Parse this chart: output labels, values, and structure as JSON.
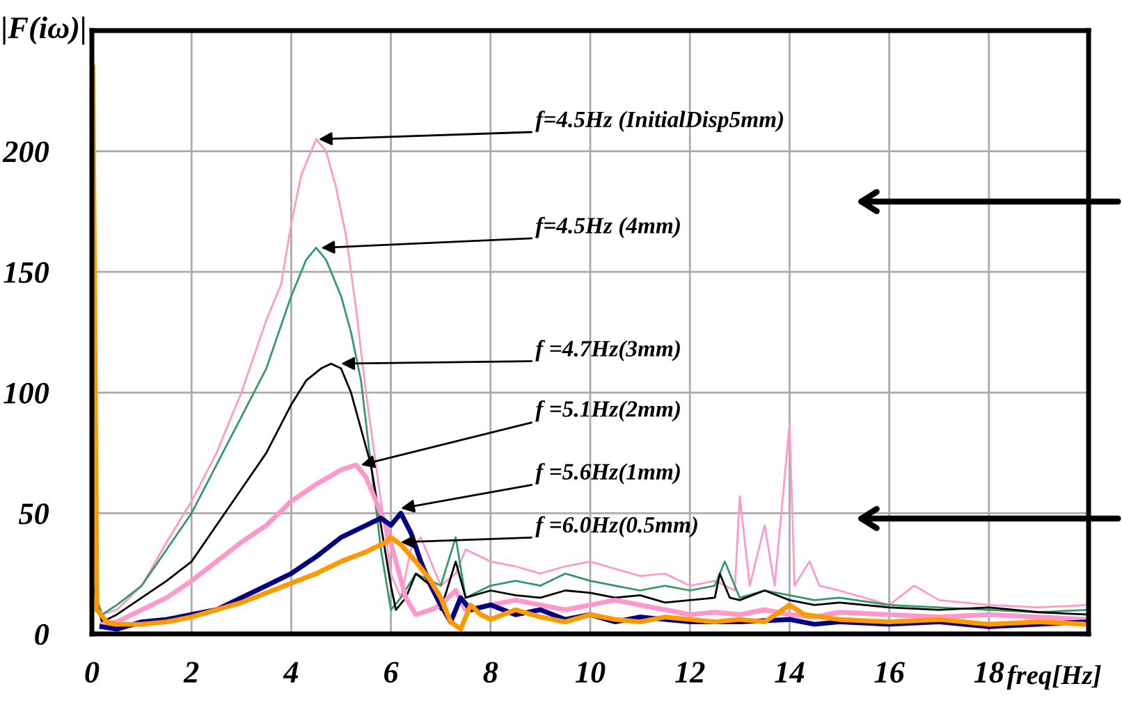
{
  "chart_data": {
    "type": "line",
    "ylabel": "|F(iω)|",
    "xlabel": "freq[Hz]",
    "xlim": [
      0,
      20
    ],
    "xticks": [
      0,
      2,
      4,
      6,
      8,
      10,
      12,
      14,
      16,
      18
    ],
    "ylim": [
      0,
      250
    ],
    "yticks": [
      0,
      50,
      100,
      150,
      200
    ],
    "grid": true,
    "marker": "none",
    "line_style": "solid",
    "series": [
      {
        "color": "#ff99cc",
        "x": [
          0.2,
          0.5,
          1,
          1.5,
          2,
          2.5,
          3,
          3.5,
          3.8,
          4.0,
          4.2,
          4.4,
          4.5,
          4.7,
          4.9,
          5.1,
          5.3,
          5.5,
          5.7,
          5.9,
          6.0,
          6.2,
          6.4,
          6.6,
          6.8,
          7.0,
          7.3,
          7.5,
          8,
          8.5,
          9,
          9.5,
          10,
          10.5,
          11,
          11.5,
          12,
          12.5,
          12.9,
          13.0,
          13.2,
          13.5,
          13.7,
          14.0,
          14.1,
          14.4,
          14.6,
          15,
          15.5,
          16,
          16.5,
          17,
          18,
          19,
          20
        ],
        "values": [
          8,
          10,
          20,
          38,
          55,
          75,
          100,
          130,
          145,
          170,
          190,
          200,
          205,
          200,
          185,
          165,
          135,
          100,
          70,
          40,
          25,
          15,
          35,
          40,
          30,
          20,
          25,
          35,
          30,
          28,
          25,
          28,
          30,
          27,
          24,
          25,
          20,
          22,
          18,
          57,
          20,
          45,
          20,
          87,
          20,
          30,
          20,
          18,
          15,
          12,
          20,
          14,
          12,
          11,
          12
        ]
      },
      {
        "color": "#339966",
        "x": [
          0.02,
          0.2,
          0.5,
          1,
          1.5,
          2,
          2.5,
          3,
          3.5,
          4,
          4.3,
          4.5,
          4.7,
          5,
          5.2,
          5.4,
          5.6,
          5.8,
          6.0,
          6.2,
          6.5,
          7.0,
          7.3,
          7.5,
          8,
          8.5,
          9,
          9.5,
          10,
          10.5,
          11,
          11.5,
          12,
          12.5,
          12.7,
          13,
          13.5,
          14,
          14.5,
          15,
          16,
          17,
          18,
          19,
          20
        ],
        "values": [
          20,
          8,
          12,
          20,
          35,
          50,
          70,
          90,
          110,
          140,
          155,
          160,
          155,
          140,
          125,
          105,
          70,
          35,
          10,
          15,
          25,
          20,
          40,
          15,
          20,
          22,
          20,
          25,
          22,
          20,
          18,
          20,
          18,
          20,
          30,
          15,
          18,
          16,
          14,
          15,
          12,
          11,
          10,
          9,
          10
        ]
      },
      {
        "color": "#000000",
        "x": [
          0.02,
          0.2,
          0.5,
          1,
          1.5,
          2,
          2.5,
          3,
          3.5,
          4,
          4.3,
          4.6,
          4.8,
          5.0,
          5.2,
          5.4,
          5.6,
          5.8,
          6.0,
          6.1,
          6.3,
          6.5,
          6.8,
          7.0,
          7.3,
          7.5,
          8,
          8.5,
          9,
          9.5,
          10,
          10.5,
          11,
          11.5,
          12,
          12.5,
          12.6,
          12.8,
          13,
          13.5,
          14,
          14.5,
          15,
          16,
          17,
          18,
          19,
          20
        ],
        "values": [
          20,
          5,
          8,
          15,
          22,
          30,
          45,
          60,
          75,
          95,
          105,
          110,
          112,
          110,
          100,
          85,
          70,
          45,
          20,
          10,
          15,
          25,
          20,
          10,
          30,
          15,
          18,
          16,
          15,
          18,
          17,
          15,
          16,
          13,
          14,
          15,
          25,
          15,
          14,
          18,
          14,
          12,
          13,
          11,
          10,
          11,
          9,
          8
        ]
      },
      {
        "color": "#ff99cc",
        "x": [
          0.2,
          0.5,
          1,
          1.5,
          2,
          2.5,
          3,
          3.5,
          4,
          4.5,
          5,
          5.3,
          5.5,
          5.7,
          5.9,
          6.1,
          6.3,
          6.5,
          6.8,
          7.0,
          7.3,
          7.5,
          8,
          8.5,
          9,
          9.5,
          10,
          10.5,
          11,
          11.5,
          12,
          12.5,
          13,
          13.5,
          14,
          14.5,
          15,
          16,
          17,
          18,
          19,
          20
        ],
        "values": [
          4,
          5,
          10,
          15,
          22,
          30,
          38,
          45,
          55,
          62,
          68,
          70,
          65,
          55,
          45,
          30,
          15,
          8,
          10,
          12,
          18,
          10,
          12,
          14,
          12,
          10,
          12,
          14,
          12,
          10,
          8,
          9,
          8,
          10,
          8,
          7,
          9,
          8,
          7,
          8,
          7,
          6
        ]
      },
      {
        "color": "#000080",
        "x": [
          0.2,
          0.5,
          1,
          1.5,
          2,
          2.5,
          3,
          3.5,
          4,
          4.5,
          5,
          5.5,
          5.8,
          6.0,
          6.2,
          6.4,
          6.6,
          6.8,
          7.0,
          7.2,
          7.4,
          7.6,
          8,
          8.5,
          9,
          9.5,
          10,
          10.5,
          11,
          11.5,
          12,
          13,
          14,
          14.5,
          15,
          16,
          17,
          18,
          19,
          20
        ],
        "values": [
          3,
          2,
          5,
          6,
          8,
          10,
          15,
          20,
          25,
          32,
          40,
          45,
          48,
          45,
          50,
          42,
          30,
          20,
          12,
          5,
          15,
          10,
          12,
          8,
          10,
          6,
          8,
          5,
          7,
          6,
          5,
          5,
          6,
          4,
          5,
          4,
          5,
          3,
          4,
          5
        ]
      },
      {
        "color": "#ff9900",
        "x": [
          0.02,
          0.1,
          0.3,
          0.5,
          1,
          1.5,
          2,
          2.5,
          3,
          3.5,
          4,
          4.5,
          5,
          5.5,
          5.9,
          6.0,
          6.2,
          6.5,
          6.8,
          7.0,
          7.2,
          7.4,
          7.6,
          7.8,
          8,
          8.5,
          9,
          9.5,
          10,
          10.5,
          11,
          11.5,
          12,
          12.5,
          13,
          13.5,
          14,
          14.3,
          15,
          16,
          17,
          18,
          19,
          20
        ],
        "values": [
          235,
          10,
          5,
          4,
          4,
          5,
          7,
          10,
          13,
          17,
          21,
          25,
          30,
          34,
          38,
          40,
          37,
          30,
          22,
          15,
          5,
          2,
          12,
          8,
          6,
          10,
          7,
          5,
          8,
          6,
          5,
          7,
          6,
          5,
          6,
          5,
          12,
          8,
          6,
          5,
          6,
          4,
          5,
          4
        ]
      }
    ],
    "annotations": [
      {
        "text": "f=4.5Hz (InitialDisp5mm)",
        "x": 4.55,
        "y": 205
      },
      {
        "text": "f=4.5Hz (4mm)",
        "x": 4.6,
        "y": 160
      },
      {
        "text": "f =4.7Hz(3mm)",
        "x": 5.0,
        "y": 112
      },
      {
        "text": "f =5.1Hz(2mm)",
        "x": 5.4,
        "y": 70
      },
      {
        "text": "f =5.6Hz(1mm)",
        "x": 6.2,
        "y": 52
      },
      {
        "text": "f =6.0Hz(0.5mm)",
        "x": 6.2,
        "y": 38
      }
    ]
  }
}
